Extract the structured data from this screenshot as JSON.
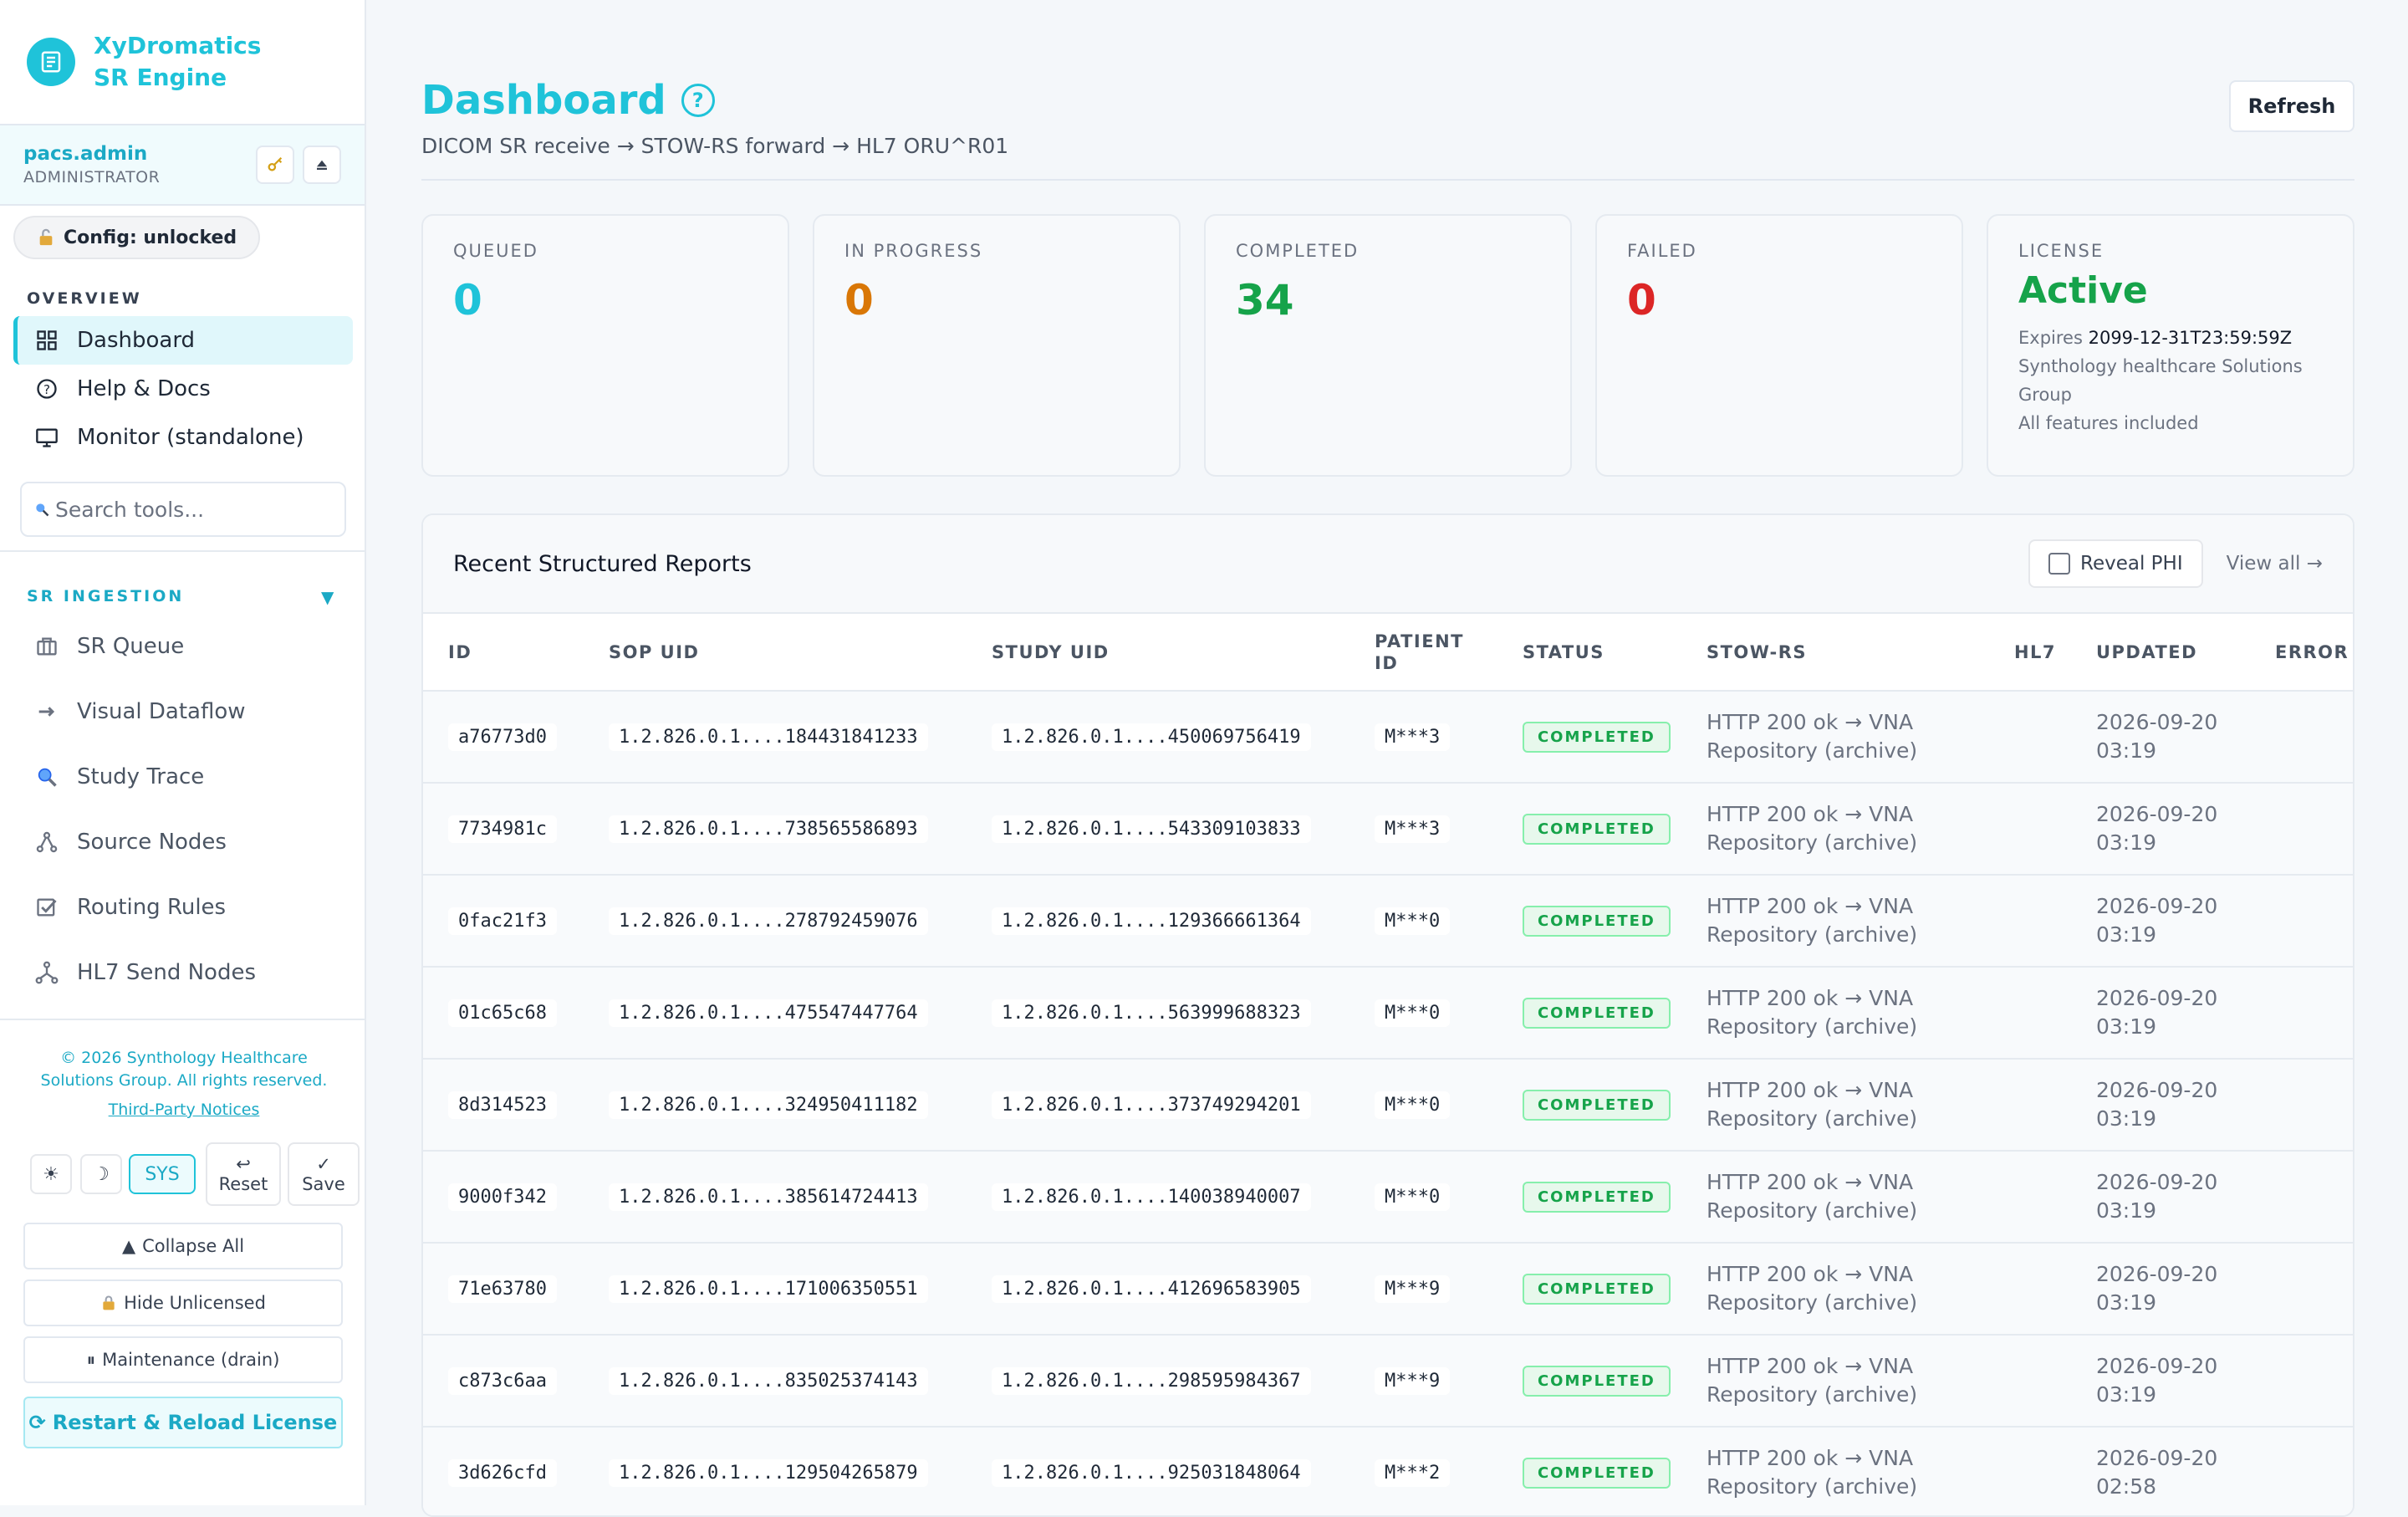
{
  "app": {
    "title": "XyDromatics SR Engine",
    "user_name": "pacs.admin",
    "user_role": "ADMINISTRATOR",
    "config_chip": "Config: unlocked"
  },
  "sidebar": {
    "overview_label": "OVERVIEW",
    "overview_items": [
      {
        "label": "Dashboard",
        "icon": "grid-icon"
      },
      {
        "label": "Help & Docs",
        "icon": "help-icon"
      },
      {
        "label": "Monitor (standalone)",
        "icon": "monitor-icon"
      }
    ],
    "search_placeholder": "Search tools...",
    "sr_label": "SR INGESTION",
    "sr_items": [
      {
        "label": "SR Queue",
        "icon": "briefcase-icon"
      },
      {
        "label": "Visual Dataflow",
        "icon": "arrow-icon"
      },
      {
        "label": "Study Trace",
        "icon": "magnifier-icon"
      },
      {
        "label": "Source Nodes",
        "icon": "nodes-icon"
      },
      {
        "label": "Routing Rules",
        "icon": "checkbox-icon"
      },
      {
        "label": "HL7 Send Nodes",
        "icon": "network-icon"
      }
    ],
    "copyright": "© 2026 Synthology Healthcare Solutions Group. All rights reserved.",
    "third_party": "Third-Party Notices",
    "theme_light": "☀",
    "theme_dark": "☽",
    "theme_sys": "SYS",
    "reset_label": "Reset",
    "save_label": "Save",
    "collapse_all": "Collapse All",
    "hide_unlicensed": "Hide Unlicensed",
    "maintenance": "Maintenance (drain)",
    "restart": "Restart & Reload License"
  },
  "header": {
    "title": "Dashboard",
    "subtitle": "DICOM SR receive → STOW-RS forward → HL7 ORU^R01",
    "refresh": "Refresh"
  },
  "stats": [
    {
      "label": "QUEUED",
      "value": "0",
      "color": "#1fc3d9"
    },
    {
      "label": "IN PROGRESS",
      "value": "0",
      "color": "#d97706"
    },
    {
      "label": "COMPLETED",
      "value": "34",
      "color": "#16a34a"
    },
    {
      "label": "FAILED",
      "value": "0",
      "color": "#dc2626"
    }
  ],
  "license": {
    "label": "LICENSE",
    "status": "Active",
    "expires_label": "Expires",
    "expires": "2099-12-31T23:59:59Z",
    "org": "Synthology healthcare Solutions Group",
    "features": "All features included"
  },
  "reports": {
    "title": "Recent Structured Reports",
    "reveal_phi": "Reveal PHI",
    "view_all": "View all →",
    "columns": [
      "ID",
      "SOP UID",
      "STUDY UID",
      "PATIENT ID",
      "STATUS",
      "STOW-RS",
      "HL7",
      "UPDATED",
      "ERROR"
    ],
    "rows": [
      {
        "id": "a76773d0",
        "sop": "1.2.826.0.1....184431841233",
        "study": "1.2.826.0.1....450069756419",
        "patient": "M***3",
        "status": "COMPLETED",
        "stow": "HTTP 200 ok → VNA Repository (archive)",
        "hl7": "",
        "updated": "2026-09-20 03:19",
        "error": ""
      },
      {
        "id": "7734981c",
        "sop": "1.2.826.0.1....738565586893",
        "study": "1.2.826.0.1....543309103833",
        "patient": "M***3",
        "status": "COMPLETED",
        "stow": "HTTP 200 ok → VNA Repository (archive)",
        "hl7": "",
        "updated": "2026-09-20 03:19",
        "error": ""
      },
      {
        "id": "0fac21f3",
        "sop": "1.2.826.0.1....278792459076",
        "study": "1.2.826.0.1....129366661364",
        "patient": "M***0",
        "status": "COMPLETED",
        "stow": "HTTP 200 ok → VNA Repository (archive)",
        "hl7": "",
        "updated": "2026-09-20 03:19",
        "error": ""
      },
      {
        "id": "01c65c68",
        "sop": "1.2.826.0.1....475547447764",
        "study": "1.2.826.0.1....563999688323",
        "patient": "M***0",
        "status": "COMPLETED",
        "stow": "HTTP 200 ok → VNA Repository (archive)",
        "hl7": "",
        "updated": "2026-09-20 03:19",
        "error": ""
      },
      {
        "id": "8d314523",
        "sop": "1.2.826.0.1....324950411182",
        "study": "1.2.826.0.1....373749294201",
        "patient": "M***0",
        "status": "COMPLETED",
        "stow": "HTTP 200 ok → VNA Repository (archive)",
        "hl7": "",
        "updated": "2026-09-20 03:19",
        "error": ""
      },
      {
        "id": "9000f342",
        "sop": "1.2.826.0.1....385614724413",
        "study": "1.2.826.0.1....140038940007",
        "patient": "M***0",
        "status": "COMPLETED",
        "stow": "HTTP 200 ok → VNA Repository (archive)",
        "hl7": "",
        "updated": "2026-09-20 03:19",
        "error": ""
      },
      {
        "id": "71e63780",
        "sop": "1.2.826.0.1....171006350551",
        "study": "1.2.826.0.1....412696583905",
        "patient": "M***9",
        "status": "COMPLETED",
        "stow": "HTTP 200 ok → VNA Repository (archive)",
        "hl7": "",
        "updated": "2026-09-20 03:19",
        "error": ""
      },
      {
        "id": "c873c6aa",
        "sop": "1.2.826.0.1....835025374143",
        "study": "1.2.826.0.1....298595984367",
        "patient": "M***9",
        "status": "COMPLETED",
        "stow": "HTTP 200 ok → VNA Repository (archive)",
        "hl7": "",
        "updated": "2026-09-20 03:19",
        "error": ""
      },
      {
        "id": "3d626cfd",
        "sop": "1.2.826.0.1....129504265879",
        "study": "1.2.826.0.1....925031848064",
        "patient": "M***2",
        "status": "COMPLETED",
        "stow": "HTTP 200 ok → VNA Repository (archive)",
        "hl7": "",
        "updated": "2026-09-20 02:58",
        "error": ""
      }
    ]
  }
}
